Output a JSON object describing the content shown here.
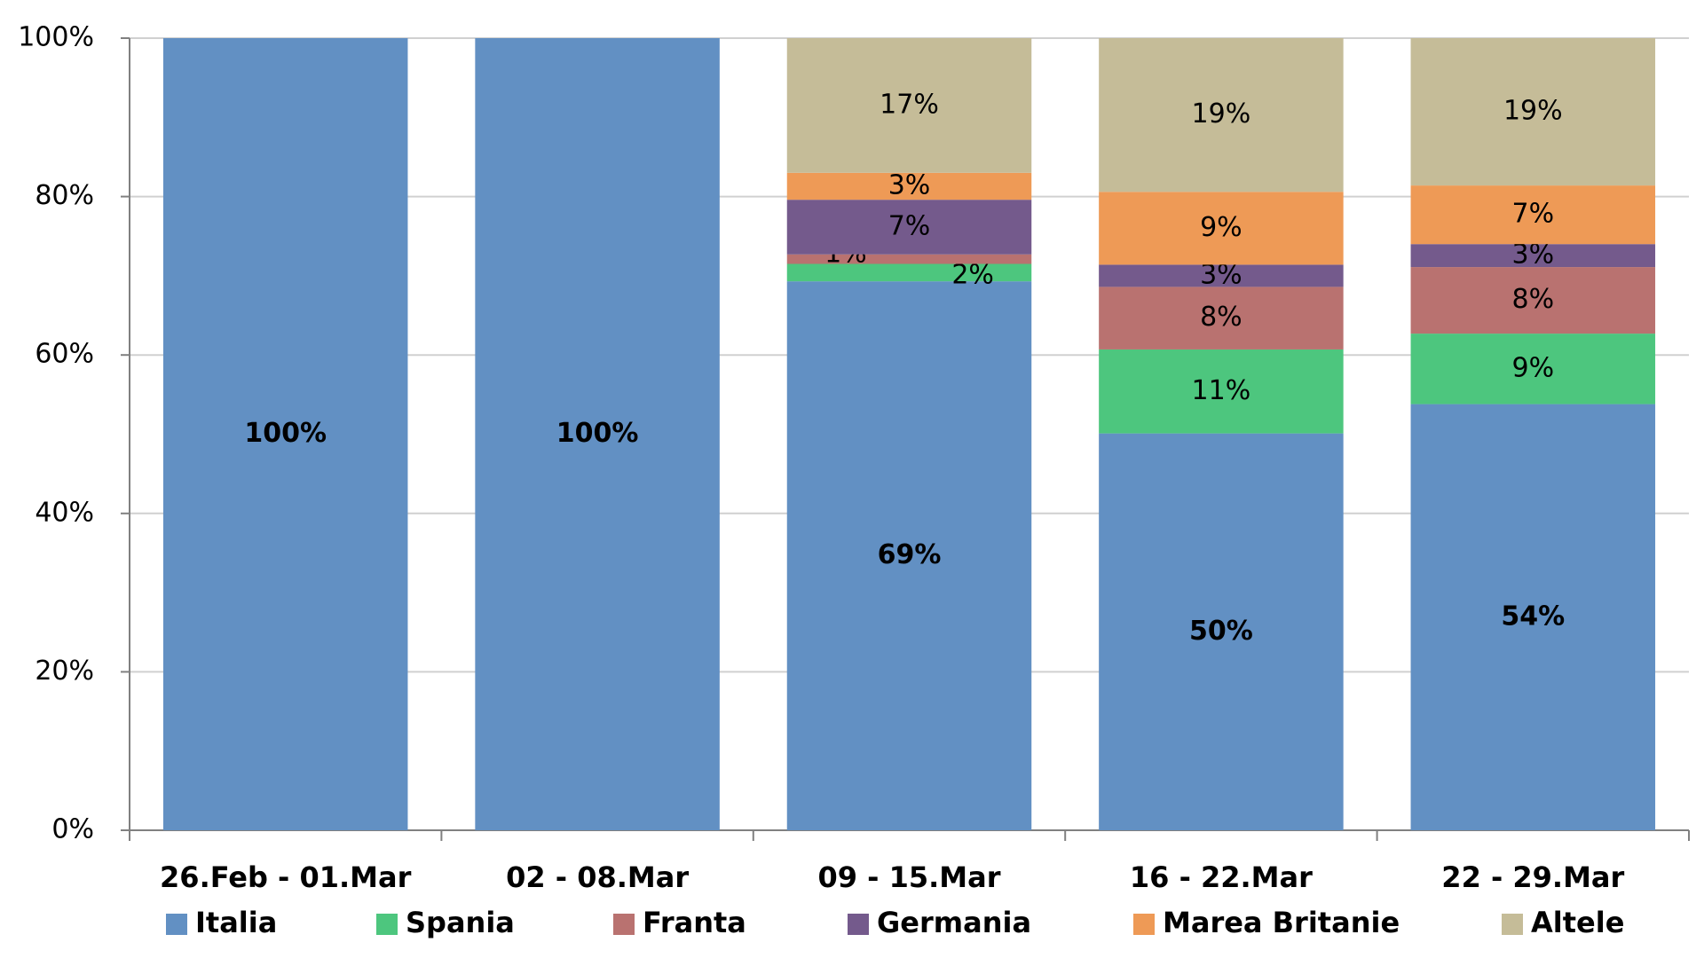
{
  "chart_data": {
    "type": "stacked-bar",
    "categories": [
      "26.Feb - 01.Mar",
      "02 - 08.Mar",
      "09 - 15.Mar",
      "16 - 22.Mar",
      "22 - 29.Mar"
    ],
    "series": [
      {
        "name": "Italia",
        "color": "#6290c3",
        "values": [
          100,
          100,
          69.3,
          50.1,
          53.8
        ],
        "value_labels": [
          "100%",
          "100%",
          "69%",
          "50%",
          "54%"
        ]
      },
      {
        "name": "Spania",
        "color": "#4dc67e",
        "values": [
          0,
          0,
          2.2,
          10.6,
          8.9
        ],
        "value_labels": [
          null,
          null,
          "2%",
          "11%",
          "9%"
        ]
      },
      {
        "name": "Franta",
        "color": "#b97270",
        "values": [
          0,
          0,
          1.2,
          7.9,
          8.4
        ],
        "value_labels": [
          null,
          null,
          "1%",
          "8%",
          "8%"
        ]
      },
      {
        "name": "Germania",
        "color": "#745a8c",
        "values": [
          0,
          0,
          6.9,
          2.8,
          2.9
        ],
        "value_labels": [
          null,
          null,
          "7%",
          "3%",
          "3%"
        ]
      },
      {
        "name": "Marea Britanie",
        "color": "#ee9a56",
        "values": [
          0,
          0,
          3.4,
          9.2,
          7.4
        ],
        "value_labels": [
          null,
          null,
          "3%",
          "9%",
          "7%"
        ]
      },
      {
        "name": "Altele",
        "color": "#c5bc98",
        "values": [
          0,
          0,
          17.0,
          19.4,
          18.6
        ],
        "value_labels": [
          null,
          null,
          "17%",
          "19%",
          "19%"
        ]
      }
    ],
    "ylim": [
      0,
      100
    ],
    "yticks": [
      {
        "value": 0,
        "label": "0%"
      },
      {
        "value": 20,
        "label": "20%"
      },
      {
        "value": 40,
        "label": "40%"
      },
      {
        "value": 60,
        "label": "60%"
      },
      {
        "value": 80,
        "label": "80%"
      },
      {
        "value": 100,
        "label": "100%"
      }
    ],
    "grid": true,
    "legend": "bottom"
  }
}
